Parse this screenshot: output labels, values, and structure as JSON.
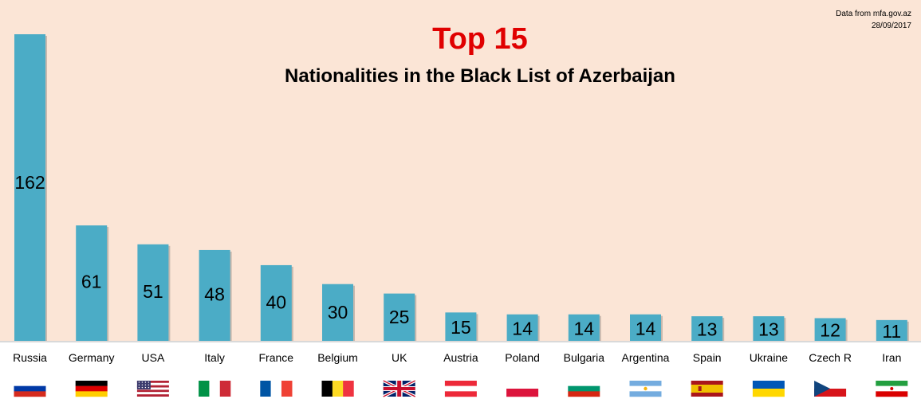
{
  "source": {
    "line1": "Data from mfa.gov.az",
    "line2": "28/09/2017"
  },
  "chart_data": {
    "type": "bar",
    "title": "Top 15",
    "subtitle": "Nationalities in the Black List of Azerbaijan",
    "categories": [
      "Russia",
      "Germany",
      "USA",
      "Italy",
      "France",
      "Belgium",
      "UK",
      "Austria",
      "Poland",
      "Bulgaria",
      "Argentina",
      "Spain",
      "Ukraine",
      "Czech R",
      "Iran"
    ],
    "values": [
      162,
      61,
      51,
      48,
      40,
      30,
      25,
      15,
      14,
      14,
      14,
      13,
      13,
      12,
      11
    ],
    "flags": [
      "russia-flag",
      "germany-flag",
      "usa-flag",
      "italy-flag",
      "france-flag",
      "belgium-flag",
      "uk-flag",
      "austria-flag",
      "poland-flag",
      "bulgaria-flag",
      "argentina-flag",
      "spain-flag",
      "ukraine-flag",
      "czech-flag",
      "iran-flag"
    ],
    "bar_color": "#4bacc6",
    "ylim": [
      0,
      162
    ],
    "grid": false,
    "legend": "none"
  }
}
